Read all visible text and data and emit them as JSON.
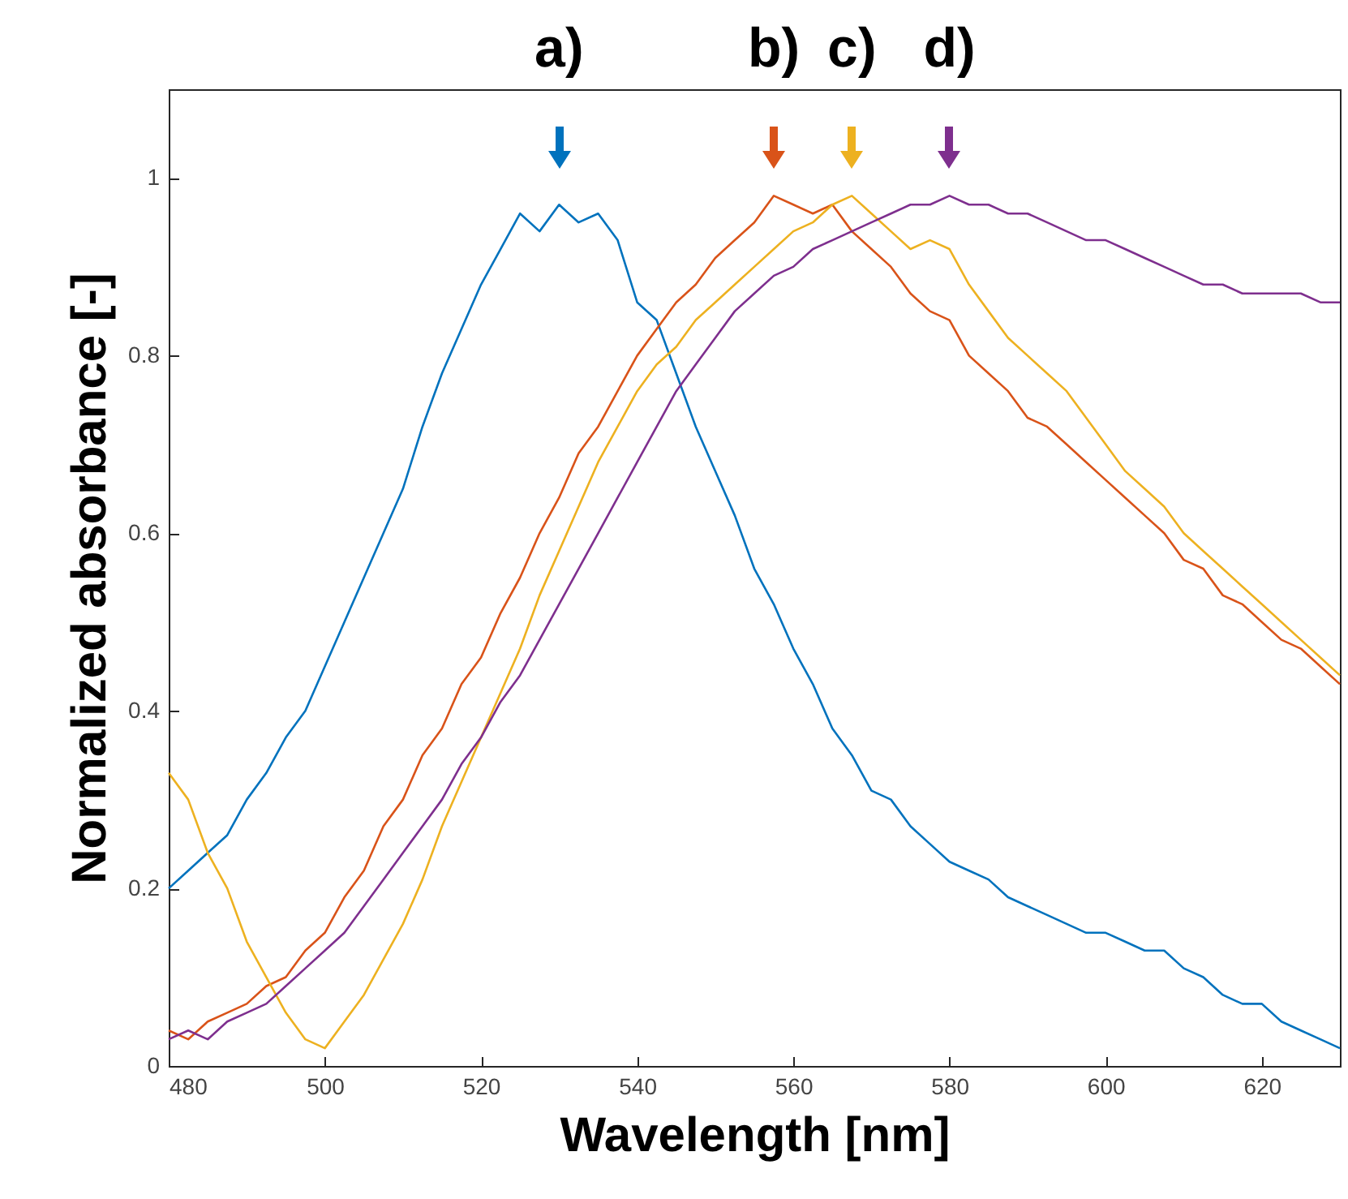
{
  "chart_data": {
    "type": "line",
    "xlabel": "Wavelength [nm]",
    "ylabel": "Normalized absorbance [-]",
    "x": [
      480,
      482.5,
      485,
      487.5,
      490,
      492.5,
      495,
      497.5,
      500,
      502.5,
      505,
      507.5,
      510,
      512.5,
      515,
      517.5,
      520,
      522.5,
      525,
      527.5,
      530,
      532.5,
      535,
      537.5,
      540,
      542.5,
      545,
      547.5,
      550,
      552.5,
      555,
      557.5,
      560,
      562.5,
      565,
      567.5,
      570,
      572.5,
      575,
      577.5,
      580,
      582.5,
      585,
      587.5,
      590,
      592.5,
      595,
      597.5,
      600,
      602.5,
      605,
      607.5,
      610,
      612.5,
      615,
      617.5,
      620,
      622.5,
      625,
      627.5,
      630
    ],
    "series": [
      {
        "name": "a)",
        "color": "#0072bd",
        "values": [
          0.2,
          0.22,
          0.24,
          0.26,
          0.3,
          0.33,
          0.37,
          0.4,
          0.45,
          0.5,
          0.55,
          0.6,
          0.65,
          0.72,
          0.78,
          0.83,
          0.88,
          0.92,
          0.96,
          0.94,
          0.97,
          0.95,
          0.96,
          0.93,
          0.86,
          0.84,
          0.78,
          0.72,
          0.67,
          0.62,
          0.56,
          0.52,
          0.47,
          0.43,
          0.38,
          0.35,
          0.31,
          0.3,
          0.27,
          0.25,
          0.23,
          0.22,
          0.21,
          0.19,
          0.18,
          0.17,
          0.16,
          0.15,
          0.15,
          0.14,
          0.13,
          0.13,
          0.11,
          0.1,
          0.08,
          0.07,
          0.07,
          0.05,
          0.04,
          0.03,
          0.02
        ]
      },
      {
        "name": "b)",
        "color": "#d95319",
        "values": [
          0.04,
          0.03,
          0.05,
          0.06,
          0.07,
          0.09,
          0.1,
          0.13,
          0.15,
          0.19,
          0.22,
          0.27,
          0.3,
          0.35,
          0.38,
          0.43,
          0.46,
          0.51,
          0.55,
          0.6,
          0.64,
          0.69,
          0.72,
          0.76,
          0.8,
          0.83,
          0.86,
          0.88,
          0.91,
          0.93,
          0.95,
          0.98,
          0.97,
          0.96,
          0.97,
          0.94,
          0.92,
          0.9,
          0.87,
          0.85,
          0.84,
          0.8,
          0.78,
          0.76,
          0.73,
          0.72,
          0.7,
          0.68,
          0.66,
          0.64,
          0.62,
          0.6,
          0.57,
          0.56,
          0.53,
          0.52,
          0.5,
          0.48,
          0.47,
          0.45,
          0.43
        ]
      },
      {
        "name": "c)",
        "color": "#edb120",
        "values": [
          0.33,
          0.3,
          0.24,
          0.2,
          0.14,
          0.1,
          0.06,
          0.03,
          0.02,
          0.05,
          0.08,
          0.12,
          0.16,
          0.21,
          0.27,
          0.32,
          0.37,
          0.42,
          0.47,
          0.53,
          0.58,
          0.63,
          0.68,
          0.72,
          0.76,
          0.79,
          0.81,
          0.84,
          0.86,
          0.88,
          0.9,
          0.92,
          0.94,
          0.95,
          0.97,
          0.98,
          0.96,
          0.94,
          0.92,
          0.93,
          0.92,
          0.88,
          0.85,
          0.82,
          0.8,
          0.78,
          0.76,
          0.73,
          0.7,
          0.67,
          0.65,
          0.63,
          0.6,
          0.58,
          0.56,
          0.54,
          0.52,
          0.5,
          0.48,
          0.46,
          0.44
        ]
      },
      {
        "name": "d)",
        "color": "#7e2f8e",
        "values": [
          0.03,
          0.04,
          0.03,
          0.05,
          0.06,
          0.07,
          0.09,
          0.11,
          0.13,
          0.15,
          0.18,
          0.21,
          0.24,
          0.27,
          0.3,
          0.34,
          0.37,
          0.41,
          0.44,
          0.48,
          0.52,
          0.56,
          0.6,
          0.64,
          0.68,
          0.72,
          0.76,
          0.79,
          0.82,
          0.85,
          0.87,
          0.89,
          0.9,
          0.92,
          0.93,
          0.94,
          0.95,
          0.96,
          0.97,
          0.97,
          0.98,
          0.97,
          0.97,
          0.96,
          0.96,
          0.95,
          0.94,
          0.93,
          0.93,
          0.92,
          0.91,
          0.9,
          0.89,
          0.88,
          0.88,
          0.87,
          0.87,
          0.87,
          0.87,
          0.86,
          0.86
        ]
      }
    ],
    "xlim": [
      480,
      630
    ],
    "xticks": [
      480,
      500,
      520,
      540,
      560,
      580,
      600,
      620
    ],
    "ylim": [
      0,
      1.1
    ],
    "yticks": [
      0,
      0.2,
      0.4,
      0.6,
      0.8,
      1
    ]
  }
}
